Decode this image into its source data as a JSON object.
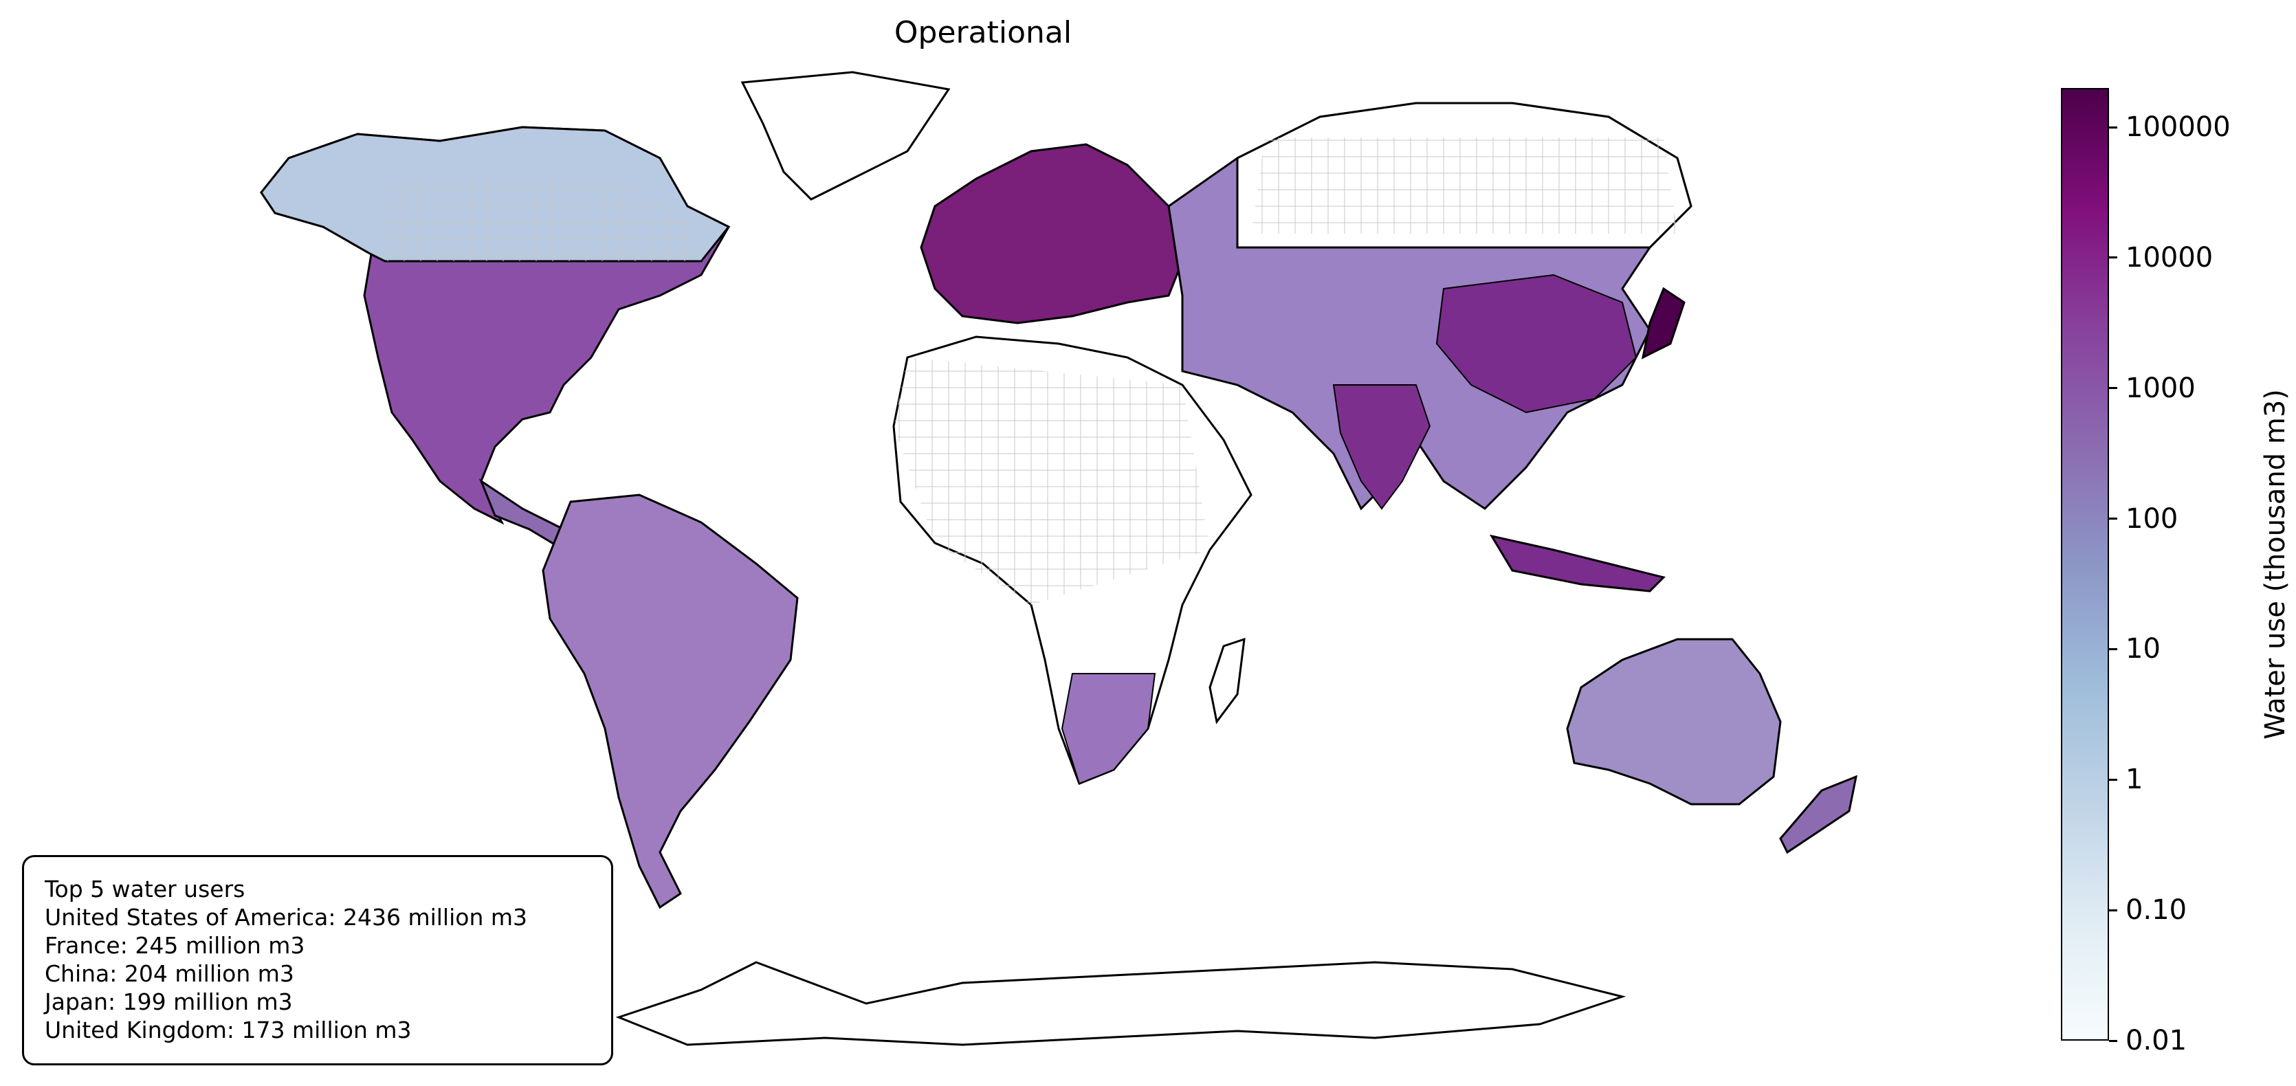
{
  "map": {
    "title": "Operational",
    "regions": [
      {
        "name": "North America",
        "level": "high"
      },
      {
        "name": "South America",
        "level": "medium"
      },
      {
        "name": "Europe",
        "level": "very-high"
      },
      {
        "name": "Africa",
        "level": "low"
      },
      {
        "name": "Asia",
        "level": "high"
      },
      {
        "name": "Australia",
        "level": "medium"
      },
      {
        "name": "Antarctica",
        "level": "none"
      }
    ]
  },
  "legend_box": {
    "lines": [
      "Top 5 water users",
      "United States of America: 2436 million m3",
      "France: 245 million m3",
      "China: 204 million m3",
      "Japan: 199 million m3",
      "United Kingdom: 173 million m3"
    ]
  },
  "colorbar": {
    "label": "Water use (thousand m3)",
    "scale": "log",
    "min": 0.01,
    "max": 200000,
    "ticks": [
      "100000",
      "10000",
      "1000",
      "100",
      "10",
      "1",
      "0.10",
      "0.01"
    ],
    "tick_values": [
      100000,
      10000,
      1000,
      100,
      10,
      1,
      0.1,
      0.01
    ],
    "colors": [
      "#f7fcfd",
      "#e0ecf4",
      "#bfd3e6",
      "#9ebcda",
      "#8c96c6",
      "#8c6bb1",
      "#88419d",
      "#810f7c",
      "#4d004b"
    ]
  }
}
